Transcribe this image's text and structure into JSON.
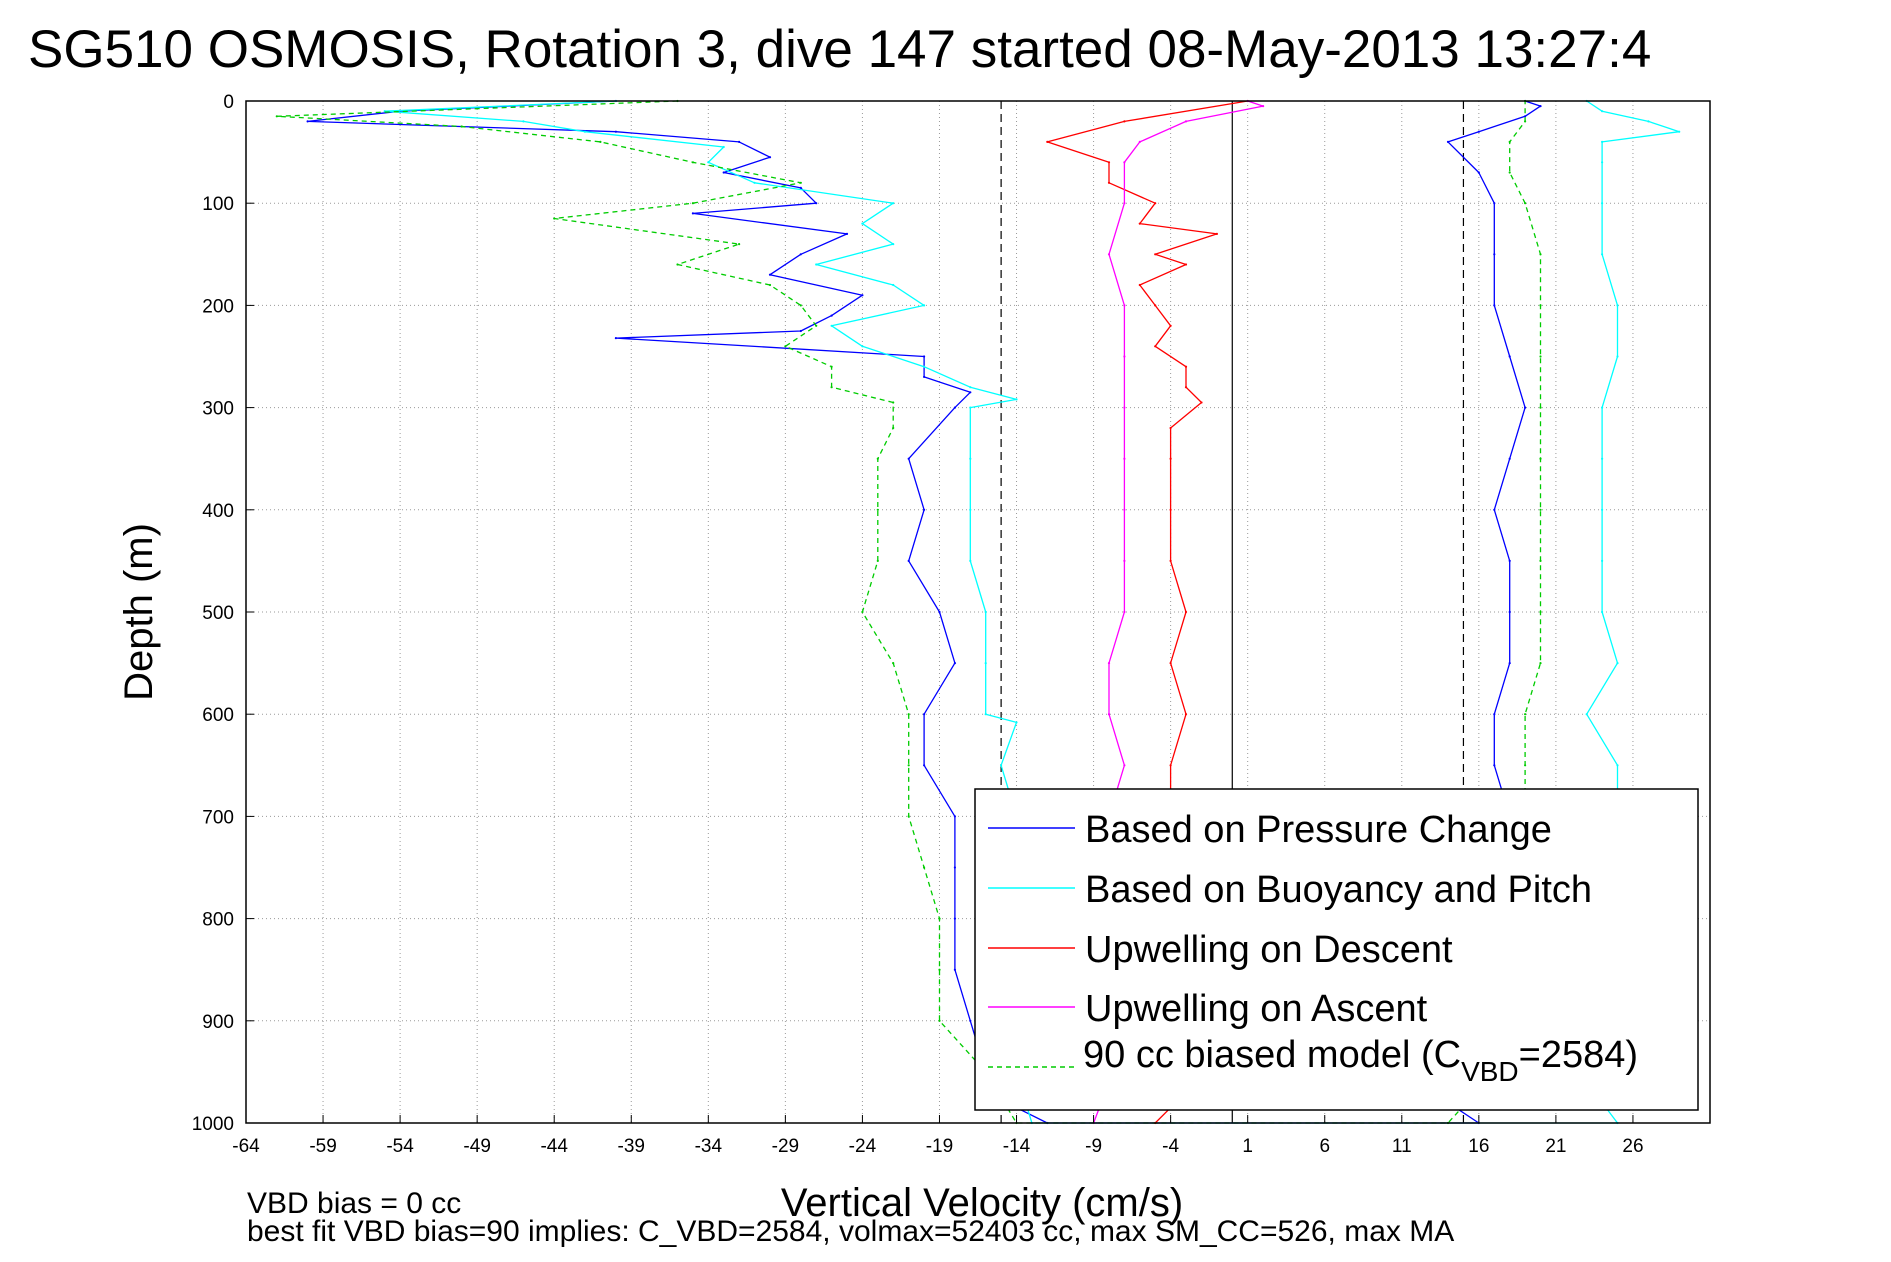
{
  "chart_data": {
    "type": "line",
    "title": "SG510 OSMOSIS, Rotation 3, dive 147 started 08-May-2013 13:27:4",
    "xlabel": "Vertical Velocity (cm/s)",
    "ylabel": "Depth (m)",
    "xlim": [
      -64,
      31
    ],
    "ylim": [
      0,
      1000
    ],
    "y_reversed": true,
    "x_ticks": [
      -64,
      -59,
      -54,
      -49,
      -44,
      -39,
      -34,
      -29,
      -24,
      -19,
      -14,
      -9,
      -4,
      1,
      6,
      11,
      16,
      21,
      26
    ],
    "y_ticks": [
      0,
      100,
      200,
      300,
      400,
      500,
      600,
      700,
      800,
      900,
      1000
    ],
    "grid": true,
    "legend_position": "bottom-right",
    "reference_lines": [
      {
        "x": 0,
        "style": "solid",
        "color": "#000000"
      },
      {
        "x": -15,
        "style": "dashed",
        "color": "#000000"
      },
      {
        "x": 15,
        "style": "dashed",
        "color": "#000000"
      }
    ],
    "series": [
      {
        "name": "Based on Pressure Change",
        "color": "#0000ff",
        "style": "solid",
        "depth": [
          0,
          10,
          20,
          30,
          40,
          55,
          70,
          85,
          100,
          110,
          130,
          150,
          170,
          190,
          210,
          225,
          232,
          250,
          270,
          285,
          300,
          350,
          400,
          450,
          500,
          550,
          600,
          650,
          700,
          750,
          800,
          850,
          900,
          950,
          985,
          1000,
          1000,
          980,
          900,
          850,
          800,
          750,
          700,
          650,
          600,
          550,
          500,
          450,
          400,
          350,
          300,
          250,
          200,
          150,
          100,
          70,
          40,
          30,
          15,
          5,
          0
        ],
        "velocity": [
          -40,
          -54,
          -60,
          -40,
          -32,
          -30,
          -33,
          -28,
          -27,
          -35,
          -25,
          -28,
          -30,
          -24,
          -26,
          -28,
          -40,
          -20,
          -20,
          -17,
          -18,
          -21,
          -20,
          -21,
          -19,
          -18,
          -20,
          -20,
          -18,
          -18,
          -18,
          -18,
          -17,
          -16,
          -14,
          -12,
          16,
          14,
          17,
          17,
          17,
          17,
          18,
          17,
          17,
          18,
          18,
          18,
          17,
          18,
          19,
          18,
          17,
          17,
          17,
          16,
          14,
          16,
          19,
          20,
          19
        ]
      },
      {
        "name": "Based on Buoyancy and Pitch",
        "color": "#00ffff",
        "style": "solid",
        "depth": [
          0,
          10,
          20,
          30,
          45,
          60,
          80,
          100,
          120,
          140,
          160,
          180,
          200,
          220,
          240,
          260,
          280,
          292,
          300,
          350,
          400,
          450,
          500,
          550,
          600,
          608,
          650,
          700,
          750,
          800,
          850,
          900,
          950,
          1000,
          1000,
          980,
          900,
          850,
          800,
          750,
          700,
          650,
          600,
          550,
          500,
          450,
          400,
          350,
          300,
          250,
          200,
          150,
          100,
          60,
          40,
          30,
          20,
          10,
          0
        ],
        "velocity": [
          -40,
          -55,
          -46,
          -42,
          -33,
          -34,
          -31,
          -22,
          -24,
          -22,
          -27,
          -22,
          -20,
          -26,
          -24,
          -20,
          -17,
          -14,
          -17,
          -17,
          -17,
          -17,
          -16,
          -16,
          -16,
          -14,
          -15,
          -14,
          -14,
          -14,
          -14,
          -14,
          -14,
          -13,
          25,
          24,
          26,
          26,
          26,
          25,
          25,
          25,
          23,
          25,
          24,
          24,
          24,
          24,
          24,
          25,
          25,
          24,
          24,
          24,
          24,
          29,
          27,
          24,
          23
        ]
      },
      {
        "name": "Upwelling on Descent",
        "color": "#ff0000",
        "style": "solid",
        "depth": [
          0,
          20,
          40,
          60,
          80,
          100,
          120,
          130,
          150,
          160,
          180,
          200,
          220,
          240,
          260,
          280,
          295,
          320,
          350,
          400,
          450,
          500,
          550,
          600,
          650,
          700,
          750,
          800,
          850,
          900,
          950,
          985,
          1000
        ],
        "velocity": [
          1,
          -7,
          -12,
          -8,
          -8,
          -5,
          -6,
          -1,
          -5,
          -3,
          -6,
          -5,
          -4,
          -5,
          -3,
          -3,
          -2,
          -4,
          -4,
          -4,
          -4,
          -3,
          -4,
          -3,
          -4,
          -4,
          -4,
          -4,
          -3,
          -3,
          -4,
          -4,
          -5
        ]
      },
      {
        "name": "Upwelling on Ascent",
        "color": "#ff00ff",
        "style": "solid",
        "depth": [
          1000,
          960,
          900,
          850,
          800,
          750,
          700,
          650,
          600,
          550,
          500,
          450,
          400,
          350,
          300,
          250,
          200,
          150,
          100,
          60,
          40,
          20,
          5,
          0
        ],
        "velocity": [
          -9,
          -8,
          -8,
          -8,
          -7,
          -7,
          -8,
          -7,
          -8,
          -8,
          -7,
          -7,
          -7,
          -7,
          -7,
          -7,
          -7,
          -8,
          -7,
          -7,
          -6,
          -3,
          2,
          1
        ]
      },
      {
        "name": "90 cc biased model (C_VBD=2584)",
        "color": "#00cc00",
        "style": "dashed",
        "depth": [
          0,
          15,
          25,
          40,
          60,
          80,
          100,
          115,
          140,
          160,
          180,
          200,
          220,
          240,
          260,
          280,
          295,
          320,
          350,
          400,
          450,
          500,
          550,
          600,
          650,
          700,
          750,
          800,
          850,
          900,
          950,
          1000,
          1000,
          950,
          900,
          850,
          800,
          750,
          700,
          650,
          600,
          550,
          500,
          450,
          400,
          350,
          300,
          250,
          200,
          150,
          100,
          70,
          40,
          20,
          0
        ],
        "velocity": [
          -36,
          -62,
          -50,
          -41,
          -35,
          -28,
          -35,
          -44,
          -32,
          -36,
          -30,
          -28,
          -27,
          -29,
          -26,
          -26,
          -22,
          -22,
          -23,
          -23,
          -23,
          -24,
          -22,
          -21,
          -21,
          -21,
          -20,
          -19,
          -19,
          -19,
          -16,
          -14,
          14,
          17,
          18,
          18,
          19,
          19,
          19,
          19,
          19,
          20,
          20,
          20,
          20,
          20,
          20,
          20,
          20,
          20,
          19,
          18,
          18,
          19,
          19
        ]
      }
    ],
    "legend_labels": {
      "pressure": "Based on Pressure Change",
      "buoyancy": "Based on Buoyancy and Pitch",
      "descent": "Upwelling on Descent",
      "ascent": "Upwelling on Ascent",
      "model_prefix": "90 cc biased model (C",
      "model_sub": "VBD",
      "model_suffix": "=2584)"
    },
    "annotations": {
      "vbd_bias": "VBD bias = 0 cc",
      "best_fit": "best fit VBD bias=90 implies: C_VBD=2584, volmax=52403 cc, max SM_CC=526, max MA"
    }
  }
}
